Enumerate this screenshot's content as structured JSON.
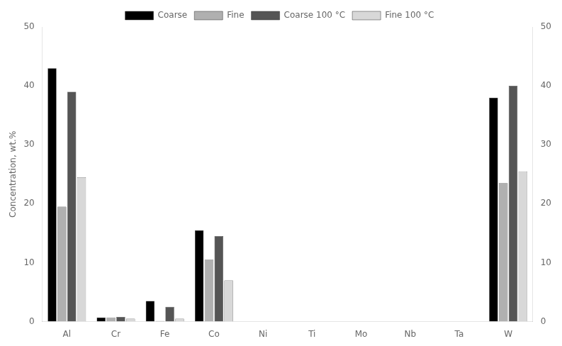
{
  "chart_data": {
    "type": "bar",
    "categories": [
      "Al",
      "Cr",
      "Fe",
      "Co",
      "Ni",
      "Ti",
      "Mo",
      "Nb",
      "Ta",
      "W"
    ],
    "series": [
      {
        "name": "Coarse",
        "color": "#000000",
        "values": [
          43.0,
          0.7,
          3.5,
          15.5,
          0.0,
          0.0,
          0.0,
          0.0,
          0.0,
          38.0
        ]
      },
      {
        "name": "Fine",
        "color": "#b0b0b0",
        "values": [
          19.5,
          0.7,
          0.1,
          10.5,
          0.0,
          0.0,
          0.0,
          0.0,
          0.0,
          23.5
        ]
      },
      {
        "name": "Coarse 100 °C",
        "color": "#555555",
        "values": [
          39.0,
          0.8,
          2.5,
          14.5,
          0.0,
          0.0,
          0.0,
          0.0,
          0.0,
          40.0
        ]
      },
      {
        "name": "Fine 100 °C",
        "color": "#d8d8d8",
        "values": [
          24.5,
          0.5,
          0.5,
          7.0,
          0.0,
          0.0,
          0.0,
          0.0,
          0.0,
          25.5
        ]
      }
    ],
    "ylabel": "Concentration, wt.%",
    "ylim": [
      0,
      50
    ],
    "yticks": [
      0,
      10,
      20,
      30,
      40,
      50
    ],
    "y2lim": [
      0,
      50
    ],
    "y2ticks": [
      0,
      10,
      20,
      30,
      40,
      50
    ],
    "grid": false,
    "legend": "top"
  }
}
